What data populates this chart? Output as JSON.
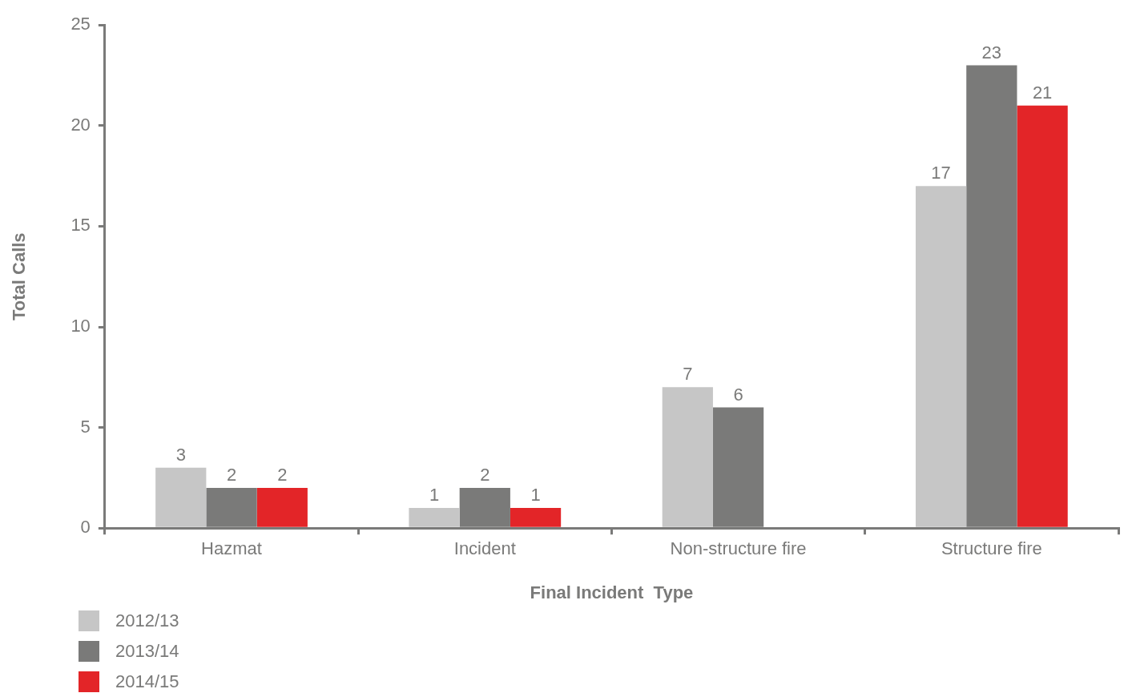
{
  "chart_data": {
    "type": "bar",
    "xlabel": "Final Incident  Type",
    "ylabel": "Total Calls",
    "categories": [
      "Hazmat",
      "Incident",
      "Non-structure fire",
      "Structure fire"
    ],
    "series": [
      {
        "name": "2012/13",
        "color": "#c6c6c6",
        "values": [
          3,
          1,
          7,
          17
        ]
      },
      {
        "name": "2013/14",
        "color": "#7a7a79",
        "values": [
          2,
          2,
          6,
          23
        ]
      },
      {
        "name": "2014/15",
        "color": "#e32528",
        "values": [
          2,
          1,
          null,
          21
        ]
      }
    ],
    "ylim": [
      0,
      25
    ],
    "yticks": [
      0,
      5,
      10,
      15,
      20,
      25
    ],
    "grid": false,
    "legend": "bottom left",
    "data_labels": true
  }
}
